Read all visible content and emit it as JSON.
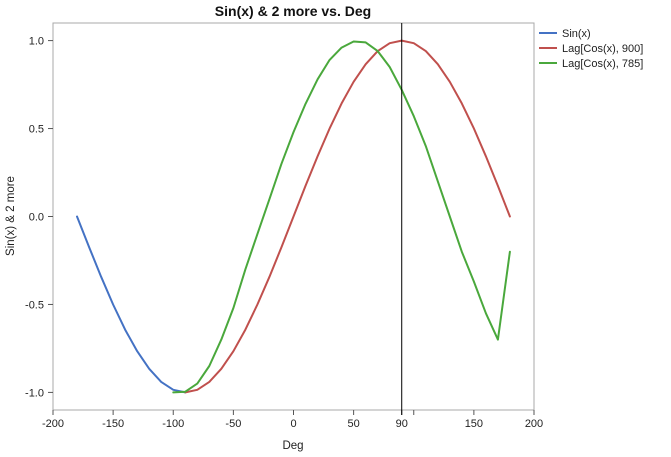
{
  "chart_data": {
    "type": "line",
    "title": "Sin(x)  & 2 more vs. Deg",
    "xlabel": "Deg",
    "ylabel": "Sin(x) & 2 more",
    "xlim": [
      -200,
      200
    ],
    "ylim": [
      -1.1,
      1.1
    ],
    "x_ticks": [
      -200,
      -150,
      -100,
      -50,
      0,
      50,
      90,
      100,
      150,
      200
    ],
    "x_tick_labels": [
      "-200",
      "-150",
      "-100",
      "-50",
      "0",
      "50",
      "90",
      "",
      "150",
      "200"
    ],
    "y_ticks": [
      -1.0,
      -0.5,
      0.0,
      0.5,
      1.0
    ],
    "y_tick_labels": [
      "-1.0",
      "-0.5",
      "0.0",
      "0.5",
      "1.0"
    ],
    "reference_line_x": 90,
    "grid": false,
    "legend_position": "right",
    "series": [
      {
        "name": "Sin(x)",
        "color": "#4472c4",
        "x": [
          -180,
          -170,
          -160,
          -150,
          -140,
          -130,
          -120,
          -110,
          -100,
          -90
        ],
        "y": [
          0.0,
          -0.174,
          -0.342,
          -0.5,
          -0.643,
          -0.766,
          -0.866,
          -0.94,
          -0.985,
          -1.0
        ]
      },
      {
        "name": "Lag[Cos(x), 900]",
        "color": "#c0504d",
        "x": [
          -90,
          -80,
          -70,
          -60,
          -50,
          -40,
          -30,
          -20,
          -10,
          0,
          10,
          20,
          30,
          40,
          50,
          60,
          70,
          80,
          90,
          100,
          110,
          120,
          130,
          140,
          150,
          160,
          170,
          180
        ],
        "y": [
          -1.0,
          -0.985,
          -0.94,
          -0.866,
          -0.766,
          -0.643,
          -0.5,
          -0.342,
          -0.174,
          0.0,
          0.174,
          0.342,
          0.5,
          0.643,
          0.766,
          0.866,
          0.94,
          0.985,
          1.0,
          0.985,
          0.94,
          0.866,
          0.766,
          0.643,
          0.5,
          0.342,
          0.174,
          0.0
        ]
      },
      {
        "name": "Lag[Cos(x), 785]",
        "color": "#4aa83c",
        "x": [
          -100,
          -90,
          -80,
          -70,
          -60,
          -50,
          -40,
          -30,
          -20,
          -10,
          0,
          10,
          20,
          30,
          40,
          50,
          60,
          70,
          80,
          90,
          100,
          110,
          120,
          130,
          140,
          150,
          160,
          170,
          180
        ],
        "y": [
          -1.0,
          -0.996,
          -0.95,
          -0.85,
          -0.7,
          -0.52,
          -0.3,
          -0.1,
          0.1,
          0.3,
          0.48,
          0.64,
          0.78,
          0.89,
          0.96,
          0.995,
          0.99,
          0.94,
          0.85,
          0.72,
          0.57,
          0.4,
          0.2,
          0.0,
          -0.2,
          -0.37,
          -0.55,
          -0.7,
          -0.2
        ]
      }
    ]
  }
}
